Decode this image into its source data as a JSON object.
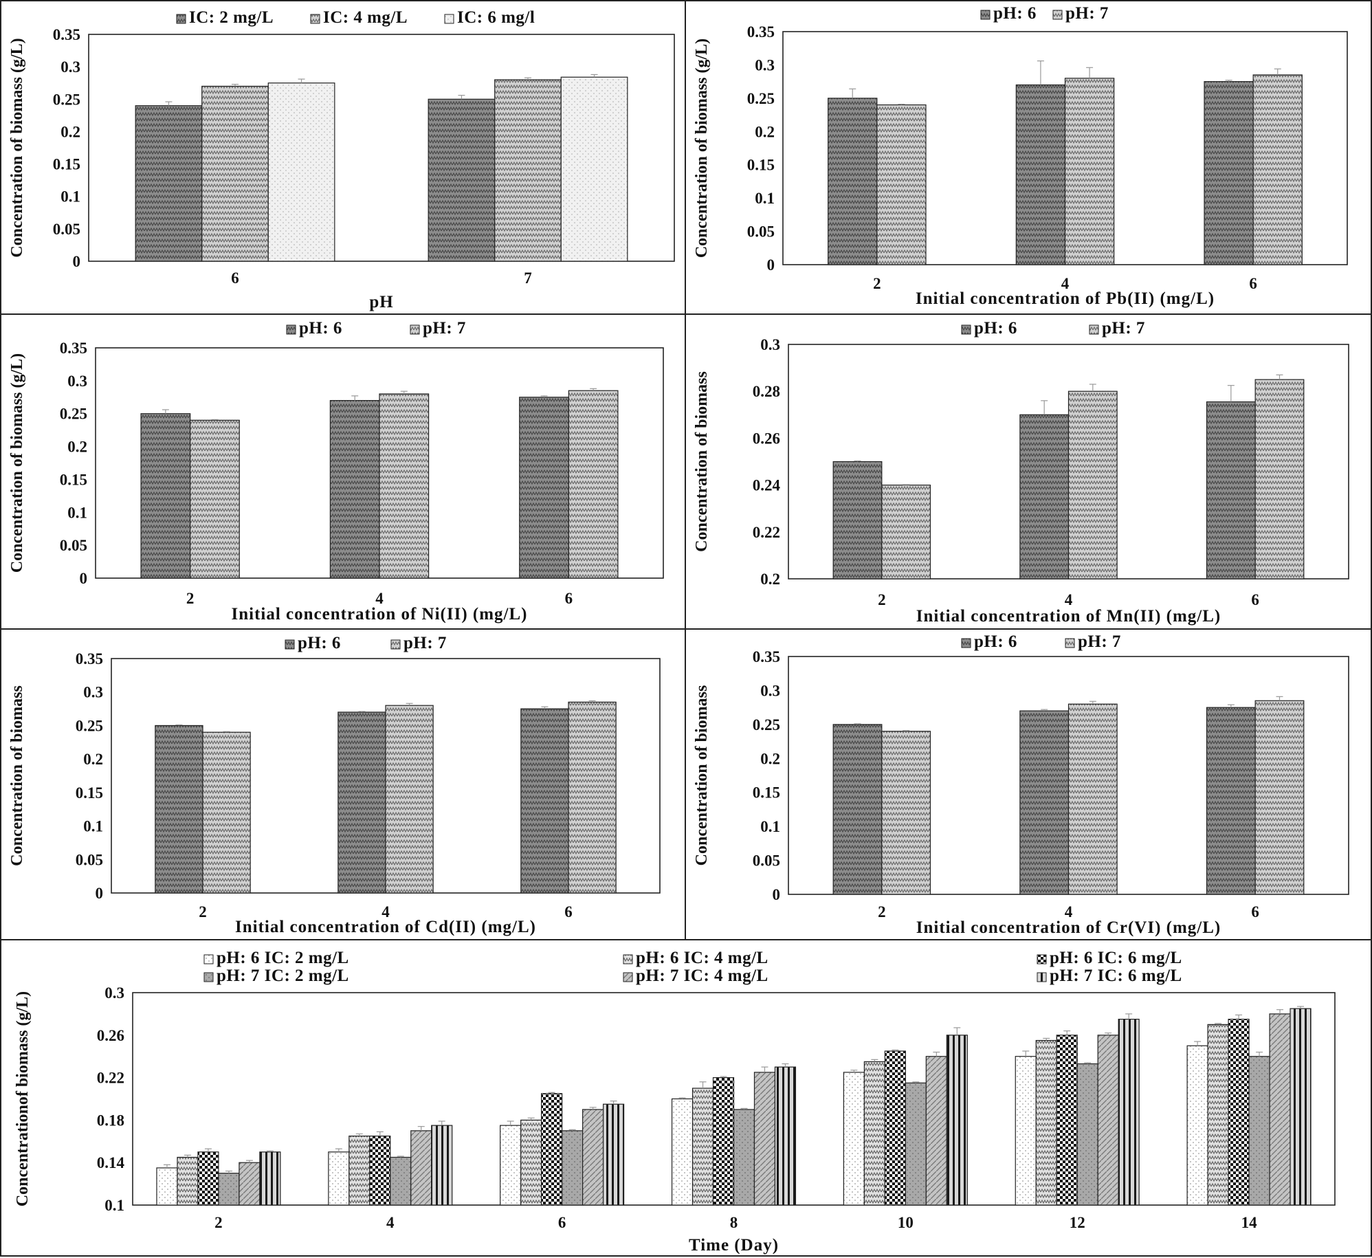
{
  "patterns": {
    "ic2": {
      "bg": "#8d8d8d",
      "fg": "#4a4a4a"
    },
    "ic4": {
      "bg": "#d2d2d2",
      "fg": "#6e6e6e"
    },
    "ic6": {
      "bg": "#f1f1f1",
      "fg": "#b9b9b9"
    },
    "ph6": {
      "bg": "#8d8d8d",
      "fg": "#4a4a4a"
    },
    "ph7": {
      "bg": "#d2d2d2",
      "fg": "#6e6e6e"
    },
    "d1": {
      "bg": "#ffffff",
      "fg": "#9a9a9a"
    },
    "d2": {
      "bg": "#e2e2e2",
      "fg": "#6a6a6a"
    },
    "d3": {
      "bg": "#ffffff",
      "fg": "#111111"
    },
    "d4": {
      "bg": "#a8a8a8",
      "fg": "#6a6a6a"
    },
    "d5": {
      "bg": "#c4c4c4",
      "fg": "#7a7a7a"
    },
    "d6": {
      "bg": "#d8d8d8",
      "fg": "#1a1a1a"
    }
  },
  "chart_data": [
    {
      "id": "ph-effect",
      "type": "bar",
      "title": "",
      "xlabel": "pH",
      "ylabel": "Concentration of biomass (g/L)",
      "categories": [
        "6",
        "7"
      ],
      "ylim": [
        0,
        0.35
      ],
      "yticks": [
        "0",
        "0.05",
        "0.1",
        "0.15",
        "0.2",
        "0.25",
        "0.3",
        "0.35"
      ],
      "legend_position": "top",
      "series": [
        {
          "name": "IC: 2 mg/L",
          "pattern": "ic2",
          "values": [
            0.24,
            0.25
          ],
          "errors": [
            0.006,
            0.006
          ]
        },
        {
          "name": "IC: 4 mg/L",
          "pattern": "ic4",
          "values": [
            0.27,
            0.28
          ],
          "errors": [
            0.003,
            0.003
          ]
        },
        {
          "name": "IC: 6 mg/l",
          "pattern": "ic6",
          "values": [
            0.275,
            0.284
          ],
          "errors": [
            0.006,
            0.004
          ]
        }
      ]
    },
    {
      "id": "pb",
      "type": "bar",
      "title": "",
      "xlabel": "Initial concentration of Pb(II) (mg/L)",
      "ylabel": "Concentration of biomass (g/L)",
      "categories": [
        "2",
        "4",
        "6"
      ],
      "ylim": [
        0,
        0.35
      ],
      "yticks": [
        "0",
        "0.05",
        "0.1",
        "0.15",
        "0.2",
        "0.25",
        "0.3",
        "0.35"
      ],
      "legend_position": "top",
      "series": [
        {
          "name": "pH: 6",
          "pattern": "ph6",
          "values": [
            0.25,
            0.27,
            0.275
          ],
          "errors": [
            0.014,
            0.036,
            0.002
          ]
        },
        {
          "name": "pH: 7",
          "pattern": "ph7",
          "values": [
            0.24,
            0.28,
            0.285
          ],
          "errors": [
            0.001,
            0.016,
            0.009
          ]
        }
      ]
    },
    {
      "id": "ni",
      "type": "bar",
      "title": "",
      "xlabel": "Initial concentration of Ni(II) (mg/L)",
      "ylabel": "Concentration of biomass (g/L)",
      "categories": [
        "2",
        "4",
        "6"
      ],
      "ylim": [
        0,
        0.35
      ],
      "yticks": [
        "0",
        "0.05",
        "0.1",
        "0.15",
        "0.2",
        "0.25",
        "0.3",
        "0.35"
      ],
      "legend_position": "top",
      "series": [
        {
          "name": "pH: 6",
          "pattern": "ph6",
          "values": [
            0.25,
            0.27,
            0.275
          ],
          "errors": [
            0.006,
            0.007,
            0.002
          ]
        },
        {
          "name": "pH: 7",
          "pattern": "ph7",
          "values": [
            0.24,
            0.28,
            0.285
          ],
          "errors": [
            0.001,
            0.004,
            0.003
          ]
        }
      ]
    },
    {
      "id": "mn",
      "type": "bar",
      "title": "",
      "xlabel": "Initial concentration of Mn(II) (mg/L)",
      "ylabel": "Concentration of biomass",
      "categories": [
        "2",
        "4",
        "6"
      ],
      "ylim": [
        0.2,
        0.3
      ],
      "yticks": [
        "0.2",
        "0.22",
        "0.24",
        "0.26",
        "0.28",
        "0.3"
      ],
      "legend_position": "top",
      "series": [
        {
          "name": "pH: 6",
          "pattern": "ph6",
          "values": [
            0.25,
            0.27,
            0.2755
          ],
          "errors": [
            0.0003,
            0.006,
            0.007
          ]
        },
        {
          "name": "pH: 7",
          "pattern": "ph7",
          "values": [
            0.24,
            0.28,
            0.285
          ],
          "errors": [
            0.0002,
            0.003,
            0.002
          ]
        }
      ]
    },
    {
      "id": "cd",
      "type": "bar",
      "title": "",
      "xlabel": "Initial concentration of Cd(II) (mg/L)",
      "ylabel": "Concentration of biomass",
      "categories": [
        "2",
        "4",
        "6"
      ],
      "ylim": [
        0,
        0.35
      ],
      "yticks": [
        "0",
        "0.05",
        "0.1",
        "0.15",
        "0.2",
        "0.25",
        "0.3",
        "0.35"
      ],
      "legend_position": "top",
      "series": [
        {
          "name": "pH: 6",
          "pattern": "ph6",
          "values": [
            0.25,
            0.27,
            0.275
          ],
          "errors": [
            0.001,
            0.001,
            0.003
          ]
        },
        {
          "name": "pH: 7",
          "pattern": "ph7",
          "values": [
            0.24,
            0.28,
            0.285
          ],
          "errors": [
            0.001,
            0.003,
            0.002
          ]
        }
      ]
    },
    {
      "id": "cr",
      "type": "bar",
      "title": "",
      "xlabel": "Initial concentration of Cr(VI) (mg/L)",
      "ylabel": "Concentration of biomass",
      "categories": [
        "2",
        "4",
        "6"
      ],
      "ylim": [
        0,
        0.35
      ],
      "yticks": [
        "0",
        "0.05",
        "0.1",
        "0.15",
        "0.2",
        "0.25",
        "0.3",
        "0.35"
      ],
      "legend_position": "top",
      "series": [
        {
          "name": "pH: 6",
          "pattern": "ph6",
          "values": [
            0.25,
            0.27,
            0.275
          ],
          "errors": [
            0.001,
            0.002,
            0.004
          ]
        },
        {
          "name": "pH: 7",
          "pattern": "ph7",
          "values": [
            0.24,
            0.28,
            0.285
          ],
          "errors": [
            0.001,
            0.004,
            0.006
          ]
        }
      ]
    },
    {
      "id": "time",
      "type": "bar",
      "title": "",
      "xlabel": "Time (Day)",
      "ylabel": "Concentrationof biomass (g/L)",
      "categories": [
        "2",
        "4",
        "6",
        "8",
        "10",
        "12",
        "14"
      ],
      "ylim": [
        0.1,
        0.3
      ],
      "yticks": [
        "0.1",
        "0.14",
        "0.18",
        "0.22",
        "0.26",
        "0.3"
      ],
      "legend_position": "top",
      "series": [
        {
          "name": "pH: 6 IC: 2 mg/L",
          "pattern": "d1",
          "values": [
            0.135,
            0.15,
            0.175,
            0.2,
            0.225,
            0.24,
            0.25
          ],
          "errors": [
            0.003,
            0.003,
            0.004,
            0.001,
            0.002,
            0.005,
            0.004
          ]
        },
        {
          "name": "pH: 6 IC: 4 mg/L",
          "pattern": "d2",
          "values": [
            0.145,
            0.165,
            0.18,
            0.21,
            0.235,
            0.255,
            0.27
          ],
          "errors": [
            0.002,
            0.002,
            0.002,
            0.006,
            0.002,
            0.002,
            0.001
          ]
        },
        {
          "name": "pH: 6 IC: 6 mg/L",
          "pattern": "d3",
          "values": [
            0.15,
            0.165,
            0.205,
            0.22,
            0.245,
            0.26,
            0.275
          ],
          "errors": [
            0.003,
            0.004,
            0.001,
            0.001,
            0.001,
            0.004,
            0.004
          ]
        },
        {
          "name": "pH: 7 IC: 2 mg/L",
          "pattern": "d4",
          "values": [
            0.13,
            0.145,
            0.17,
            0.19,
            0.215,
            0.233,
            0.24
          ],
          "errors": [
            0.002,
            0.001,
            0.001,
            0.001,
            0.001,
            0.001,
            0.004
          ]
        },
        {
          "name": "pH: 7 IC: 4 mg/L",
          "pattern": "d5",
          "values": [
            0.14,
            0.17,
            0.19,
            0.225,
            0.24,
            0.26,
            0.28
          ],
          "errors": [
            0.002,
            0.004,
            0.002,
            0.005,
            0.004,
            0.002,
            0.004
          ]
        },
        {
          "name": "pH: 7 IC: 6 mg/L",
          "pattern": "d6",
          "values": [
            0.15,
            0.175,
            0.195,
            0.23,
            0.26,
            0.275,
            0.285
          ],
          "errors": [
            0.001,
            0.004,
            0.003,
            0.003,
            0.007,
            0.005,
            0.002
          ]
        }
      ]
    }
  ]
}
